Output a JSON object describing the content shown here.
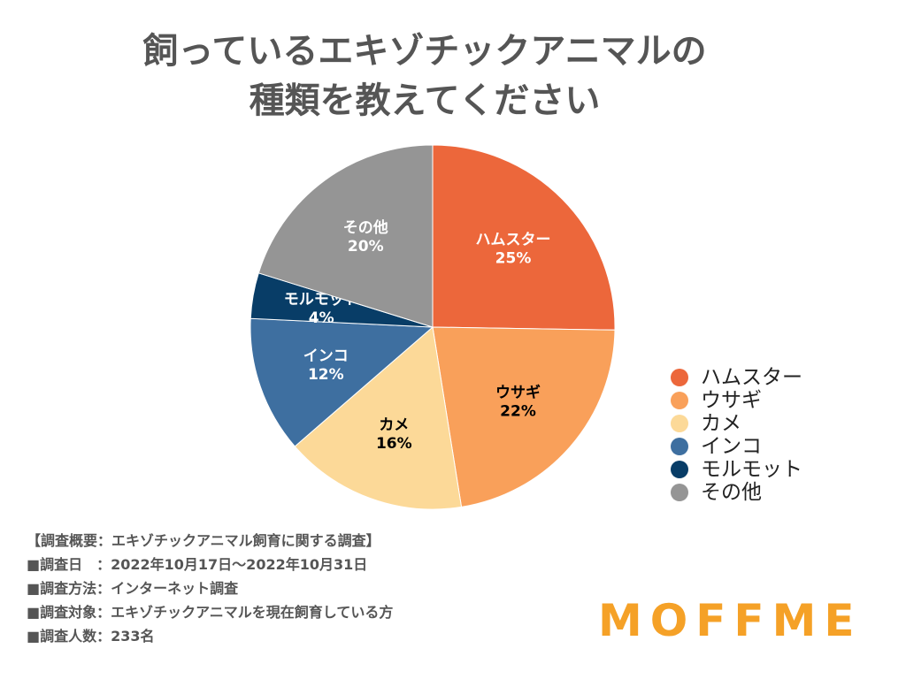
{
  "chart_data": {
    "type": "pie",
    "title_lines": [
      "飼っているエキゾチックアニマルの",
      "種類を教えてください"
    ],
    "slices": [
      {
        "label": "ハムスター",
        "value": 25,
        "value_label": "25%",
        "color": "#ec673b",
        "text_color": "#ffffff"
      },
      {
        "label": "ウサギ",
        "value": 22,
        "value_label": "22%",
        "color": "#f9a05a",
        "text_color": "#000000"
      },
      {
        "label": "カメ",
        "value": 16,
        "value_label": "16%",
        "color": "#fcd998",
        "text_color": "#000000"
      },
      {
        "label": "インコ",
        "value": 12,
        "value_label": "12%",
        "color": "#3e6fa0",
        "text_color": "#ffffff"
      },
      {
        "label": "モルモット",
        "value": 4,
        "value_label": "4%",
        "color": "#083d67",
        "text_color": "#ffffff"
      },
      {
        "label": "その他",
        "value": 20,
        "value_label": "20%",
        "color": "#959595",
        "text_color": "#ffffff"
      }
    ],
    "legend_position": "right"
  },
  "footer": [
    "【調査概要：エキゾチックアニマル飼育に関する調査】",
    "■調査日　：2022年10月17日～2022年10月31日",
    "■調査方法：インターネット調査",
    "■調査対象：エキゾチックアニマルを現在飼育している方",
    "■調査人数：233名"
  ],
  "logo": "MOFFME"
}
